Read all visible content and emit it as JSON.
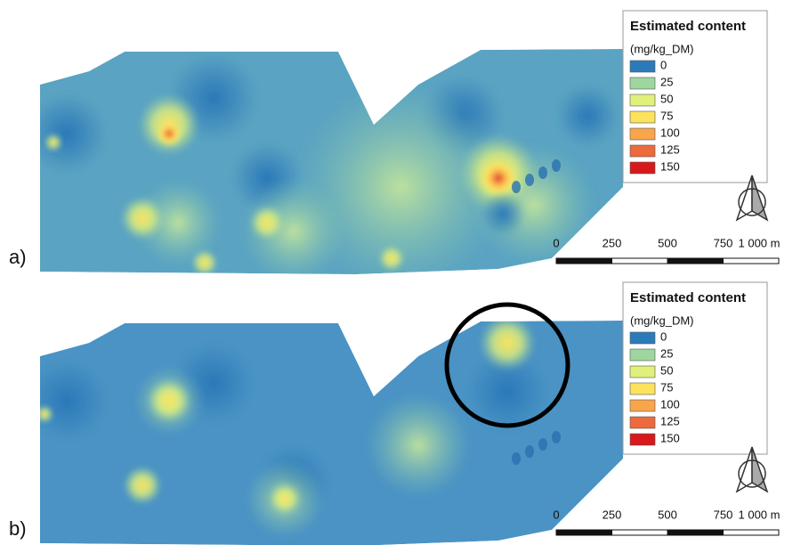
{
  "panels": [
    {
      "label": "a)",
      "legend": {
        "title": "Estimated content",
        "unit": "(mg/kg_DM)",
        "items": [
          {
            "label": "0",
            "color": "#2b7bba"
          },
          {
            "label": "25",
            "color": "#9fd6a0"
          },
          {
            "label": "50",
            "color": "#e0f07a"
          },
          {
            "label": "75",
            "color": "#fde25e"
          },
          {
            "label": "100",
            "color": "#f9a54a"
          },
          {
            "label": "125",
            "color": "#ec6a3c"
          },
          {
            "label": "150",
            "color": "#d7191c"
          }
        ]
      },
      "scale": {
        "labels": [
          "0",
          "250",
          "500",
          "750",
          "1 000 m"
        ]
      }
    },
    {
      "label": "b)",
      "legend": {
        "title": "Estimated content",
        "unit": "(mg/kg_DM)",
        "items": [
          {
            "label": "0",
            "color": "#2b7bba"
          },
          {
            "label": "25",
            "color": "#9fd6a0"
          },
          {
            "label": "50",
            "color": "#e0f07a"
          },
          {
            "label": "75",
            "color": "#fde25e"
          },
          {
            "label": "100",
            "color": "#f9a54a"
          },
          {
            "label": "125",
            "color": "#ec6a3c"
          },
          {
            "label": "150",
            "color": "#d7191c"
          }
        ]
      },
      "scale": {
        "labels": [
          "0",
          "250",
          "500",
          "750",
          "1 000 m"
        ]
      }
    }
  ]
}
